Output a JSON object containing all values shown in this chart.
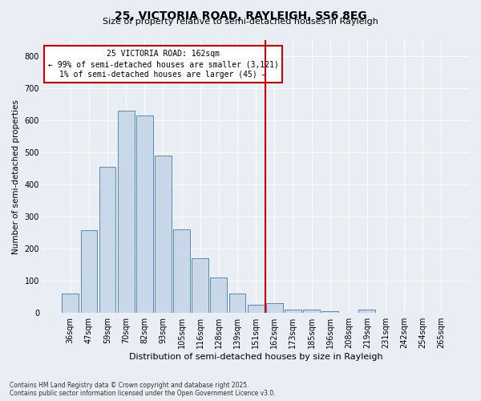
{
  "title": "25, VICTORIA ROAD, RAYLEIGH, SS6 8EG",
  "subtitle": "Size of property relative to semi-detached houses in Rayleigh",
  "xlabel": "Distribution of semi-detached houses by size in Rayleigh",
  "ylabel": "Number of semi-detached properties",
  "categories": [
    "36sqm",
    "47sqm",
    "59sqm",
    "70sqm",
    "82sqm",
    "93sqm",
    "105sqm",
    "116sqm",
    "128sqm",
    "139sqm",
    "151sqm",
    "162sqm",
    "173sqm",
    "185sqm",
    "196sqm",
    "208sqm",
    "219sqm",
    "231sqm",
    "242sqm",
    "254sqm",
    "265sqm"
  ],
  "values": [
    60,
    258,
    258,
    455,
    630,
    615,
    615,
    490,
    260,
    260,
    170,
    170,
    110,
    110,
    60,
    60,
    25,
    25,
    10,
    10,
    0,
    0,
    10,
    0,
    0,
    0,
    0,
    0,
    0,
    0,
    0,
    0
  ],
  "bar_values": [
    60,
    258,
    455,
    630,
    615,
    490,
    260,
    170,
    110,
    60,
    25,
    30,
    10,
    10,
    5,
    0,
    10,
    0,
    0,
    0,
    0
  ],
  "bar_color": "#c8d8e8",
  "bar_edge_color": "#5a8ab0",
  "vline_color": "#cc0000",
  "vline_pos": 11,
  "annotation_text": "25 VICTORIA ROAD: 162sqm\n← 99% of semi-detached houses are smaller (3,121)\n1% of semi-detached houses are larger (45) →",
  "annotation_box_color": "#cc0000",
  "ylim": [
    0,
    850
  ],
  "yticks": [
    0,
    100,
    200,
    300,
    400,
    500,
    600,
    700,
    800
  ],
  "footer": "Contains HM Land Registry data © Crown copyright and database right 2025.\nContains public sector information licensed under the Open Government Licence v3.0.",
  "background_color": "#e8eef4",
  "grid_color": "#ffffff",
  "title_fontsize": 10,
  "subtitle_fontsize": 8
}
